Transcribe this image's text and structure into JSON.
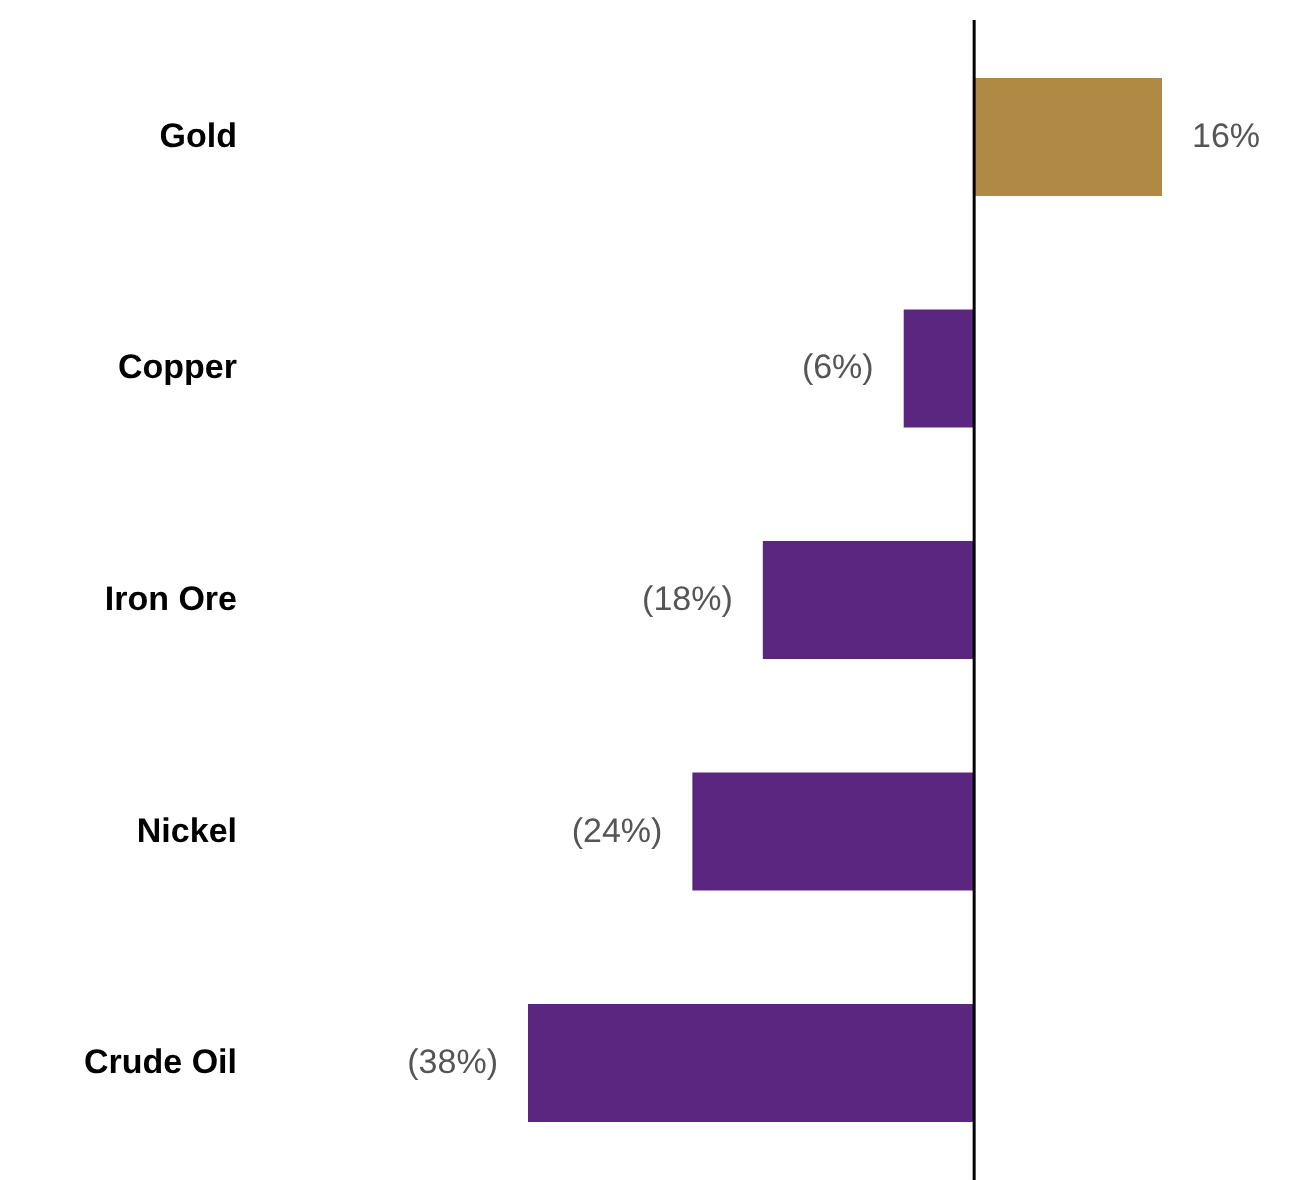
{
  "chart_data": {
    "type": "bar",
    "orientation": "horizontal",
    "categories": [
      "Gold",
      "Copper",
      "Iron Ore",
      "Nickel",
      "Crude Oil"
    ],
    "values": [
      16,
      -6,
      -18,
      -24,
      -38
    ],
    "colors": [
      "#b08a45",
      "#5a2680",
      "#5a2680",
      "#5a2680",
      "#5a2680"
    ],
    "value_labels": [
      "16%",
      "(6%)",
      "(18%)",
      "(24%)",
      "(38%)"
    ],
    "tick_labels": "y",
    "ref_lines": [
      {
        "axis": "x",
        "value": 0,
        "color": "#000000"
      }
    ]
  }
}
